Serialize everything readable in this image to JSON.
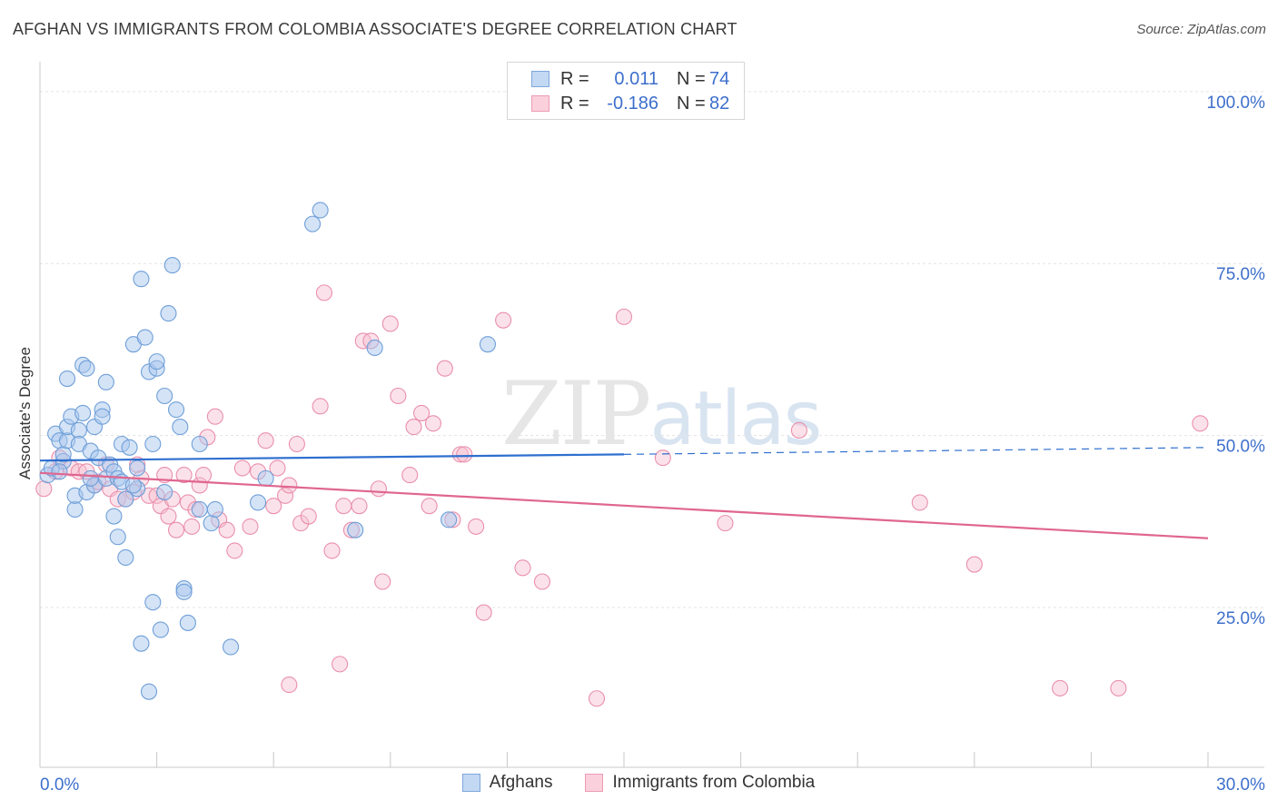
{
  "header": {
    "title": "AFGHAN VS IMMIGRANTS FROM COLOMBIA ASSOCIATE'S DEGREE CORRELATION CHART",
    "source": "Source: ZipAtlas.com"
  },
  "watermark": {
    "zip": "ZIP",
    "atlas": "atlas"
  },
  "colors": {
    "blue_fill": "#a9c8ee",
    "blue_stroke": "#6f9fd8",
    "blue_line": "#2e6fcf",
    "pink_fill": "#f7bfd0",
    "pink_stroke": "#ea8fac",
    "pink_line": "#e0668f",
    "axis_text": "#3d6fcc",
    "grid": "#e3e3e3"
  },
  "legend": {
    "rows": [
      {
        "r_label": "R =",
        "r_value": "0.011",
        "n_label": "N =",
        "n_value": "74"
      },
      {
        "r_label": "R =",
        "r_value": "-0.186",
        "n_label": "N =",
        "n_value": "82"
      }
    ]
  },
  "bottom_legend": {
    "afghans": "Afghans",
    "colombia": "Immigrants from Colombia"
  },
  "chart_data": {
    "type": "scatter",
    "title": "AFGHAN VS IMMIGRANTS FROM COLOMBIA ASSOCIATE'S DEGREE CORRELATION CHART",
    "xlabel": "",
    "ylabel": "Associate's Degree",
    "xlim": [
      0,
      30
    ],
    "ylim": [
      4,
      105
    ],
    "x_tick_labels": [
      "0.0%",
      "30.0%"
    ],
    "y_ticks": [
      25,
      50,
      75,
      100
    ],
    "y_tick_labels": [
      "25.0%",
      "50.0%",
      "75.0%",
      "100.0%"
    ],
    "grid": true,
    "legend_position": "top-center",
    "series": [
      {
        "name": "Afghans",
        "r": 0.011,
        "n": 74,
        "trend": {
          "x0": 0.0,
          "y0": 48.6,
          "x1": 15.0,
          "y1": 49.5,
          "dash_x1": 30.0,
          "dash_y1": 50.5
        },
        "points": [
          [
            0.2,
            46.5
          ],
          [
            0.3,
            47.5
          ],
          [
            0.4,
            52.5
          ],
          [
            0.5,
            51.5
          ],
          [
            0.6,
            48.5
          ],
          [
            0.6,
            49.5
          ],
          [
            0.7,
            51.5
          ],
          [
            0.7,
            53.5
          ],
          [
            0.8,
            55
          ],
          [
            0.7,
            60.5
          ],
          [
            0.9,
            41.5
          ],
          [
            0.9,
            43.5
          ],
          [
            1.0,
            53
          ],
          [
            1.0,
            51
          ],
          [
            1.1,
            55.5
          ],
          [
            1.1,
            62.5
          ],
          [
            1.2,
            62
          ],
          [
            1.2,
            44
          ],
          [
            1.3,
            50
          ],
          [
            1.4,
            53.5
          ],
          [
            1.4,
            45
          ],
          [
            1.5,
            49
          ],
          [
            1.6,
            56
          ],
          [
            1.6,
            55
          ],
          [
            1.7,
            46
          ],
          [
            1.7,
            60
          ],
          [
            1.8,
            48
          ],
          [
            1.9,
            47
          ],
          [
            1.9,
            40.5
          ],
          [
            2.0,
            46
          ],
          [
            2.0,
            37.5
          ],
          [
            2.1,
            45.5
          ],
          [
            2.1,
            51
          ],
          [
            2.2,
            34.5
          ],
          [
            2.2,
            43
          ],
          [
            2.3,
            50.5
          ],
          [
            2.4,
            65.5
          ],
          [
            2.5,
            44.5
          ],
          [
            2.5,
            47.5
          ],
          [
            2.6,
            75
          ],
          [
            2.6,
            22
          ],
          [
            2.7,
            66.5
          ],
          [
            2.8,
            61.5
          ],
          [
            2.8,
            15
          ],
          [
            2.9,
            51
          ],
          [
            2.9,
            28
          ],
          [
            3.0,
            62
          ],
          [
            3.0,
            63
          ],
          [
            3.1,
            24
          ],
          [
            3.2,
            58
          ],
          [
            3.3,
            70
          ],
          [
            3.4,
            77
          ],
          [
            3.5,
            56
          ],
          [
            3.6,
            53.5
          ],
          [
            3.7,
            30
          ],
          [
            3.7,
            29.5
          ],
          [
            3.8,
            25
          ],
          [
            4.1,
            51
          ],
          [
            4.1,
            41.5
          ],
          [
            4.4,
            39.5
          ],
          [
            4.5,
            41.5
          ],
          [
            4.9,
            21.5
          ],
          [
            5.6,
            42.5
          ],
          [
            5.8,
            46
          ],
          [
            7.0,
            83
          ],
          [
            7.2,
            85
          ],
          [
            8.1,
            38.5
          ],
          [
            8.6,
            65
          ],
          [
            10.5,
            40
          ],
          [
            11.5,
            65.5
          ],
          [
            2.4,
            45
          ],
          [
            1.3,
            46
          ],
          [
            3.2,
            44
          ],
          [
            0.5,
            47
          ]
        ]
      },
      {
        "name": "Immigrants from Colombia",
        "r": -0.186,
        "n": 82,
        "trend": {
          "x0": 0.0,
          "y0": 46.8,
          "x1": 30.0,
          "y1": 37.3
        },
        "points": [
          [
            0.1,
            44.5
          ],
          [
            0.4,
            47
          ],
          [
            0.5,
            49
          ],
          [
            0.8,
            47.5
          ],
          [
            1.0,
            47
          ],
          [
            1.2,
            47
          ],
          [
            1.4,
            45
          ],
          [
            1.5,
            45.5
          ],
          [
            1.7,
            48
          ],
          [
            1.8,
            44.5
          ],
          [
            2.0,
            43
          ],
          [
            2.2,
            43
          ],
          [
            2.4,
            44
          ],
          [
            2.5,
            48
          ],
          [
            2.6,
            46
          ],
          [
            2.8,
            43.5
          ],
          [
            3.0,
            43.5
          ],
          [
            3.1,
            42
          ],
          [
            3.2,
            46.5
          ],
          [
            3.3,
            40.5
          ],
          [
            3.4,
            43
          ],
          [
            3.5,
            38.5
          ],
          [
            3.7,
            46.5
          ],
          [
            3.8,
            42.5
          ],
          [
            3.9,
            39
          ],
          [
            4.0,
            41.5
          ],
          [
            4.1,
            45
          ],
          [
            4.2,
            46.5
          ],
          [
            4.3,
            52
          ],
          [
            4.5,
            55
          ],
          [
            4.6,
            40
          ],
          [
            4.8,
            38.5
          ],
          [
            5.0,
            35.5
          ],
          [
            5.2,
            47.5
          ],
          [
            5.4,
            39
          ],
          [
            5.6,
            47
          ],
          [
            5.8,
            51.5
          ],
          [
            6.0,
            42
          ],
          [
            6.1,
            47.5
          ],
          [
            6.3,
            43.5
          ],
          [
            6.4,
            45
          ],
          [
            6.6,
            51
          ],
          [
            6.7,
            39.5
          ],
          [
            6.9,
            40.5
          ],
          [
            7.2,
            56.5
          ],
          [
            7.3,
            73
          ],
          [
            7.5,
            35.5
          ],
          [
            7.8,
            42
          ],
          [
            8.0,
            38.5
          ],
          [
            8.2,
            42
          ],
          [
            8.3,
            66
          ],
          [
            8.5,
            66
          ],
          [
            8.7,
            44.5
          ],
          [
            8.8,
            31
          ],
          [
            9.0,
            68.5
          ],
          [
            9.2,
            58
          ],
          [
            9.5,
            46.5
          ],
          [
            9.6,
            53.5
          ],
          [
            9.8,
            55.5
          ],
          [
            10.1,
            54
          ],
          [
            10.4,
            62
          ],
          [
            10.6,
            40
          ],
          [
            10.8,
            49.5
          ],
          [
            10.9,
            49.5
          ],
          [
            11.2,
            39
          ],
          [
            11.4,
            26.5
          ],
          [
            11.9,
            69
          ],
          [
            12.4,
            33
          ],
          [
            12.9,
            31
          ],
          [
            14.3,
            14
          ],
          [
            15.0,
            69.5
          ],
          [
            16.0,
            49
          ],
          [
            17.6,
            39.5
          ],
          [
            19.5,
            53
          ],
          [
            22.6,
            42.5
          ],
          [
            24.0,
            33.5
          ],
          [
            26.2,
            15.5
          ],
          [
            27.7,
            15.5
          ],
          [
            29.8,
            54
          ],
          [
            6.4,
            16
          ],
          [
            7.7,
            19
          ],
          [
            10.0,
            42
          ]
        ]
      }
    ]
  }
}
